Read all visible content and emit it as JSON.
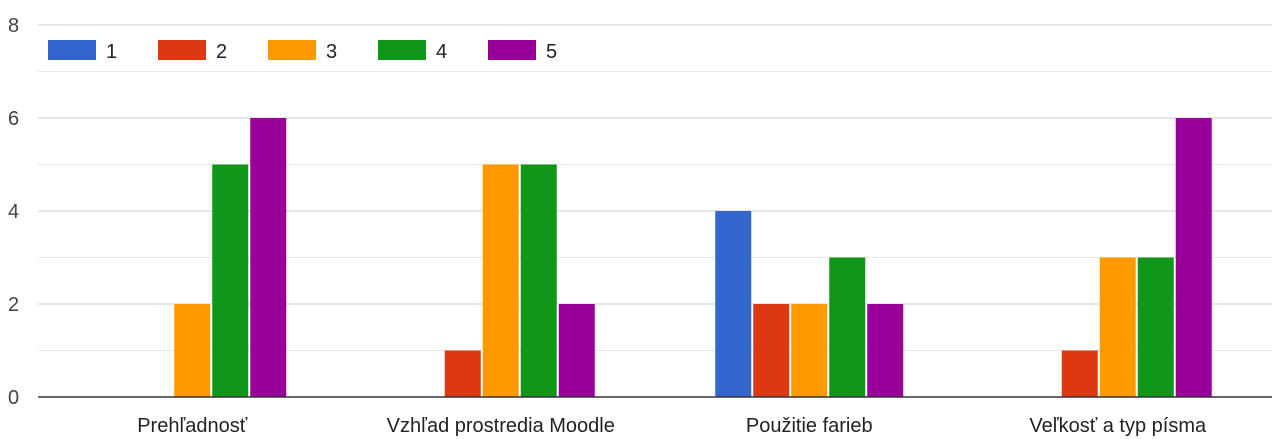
{
  "chart_data": {
    "type": "bar",
    "categories": [
      "Prehľadnosť",
      "Vzhľad prostredia Moodle",
      "Použitie farieb",
      "Veľkosť a typ písma"
    ],
    "series": [
      {
        "name": "1",
        "color": "#3366cc",
        "values": [
          0,
          0,
          4,
          0
        ]
      },
      {
        "name": "2",
        "color": "#dc3912",
        "values": [
          0,
          1,
          2,
          1
        ]
      },
      {
        "name": "3",
        "color": "#ff9900",
        "values": [
          2,
          5,
          2,
          3
        ]
      },
      {
        "name": "4",
        "color": "#109618",
        "values": [
          5,
          5,
          3,
          3
        ]
      },
      {
        "name": "5",
        "color": "#990099",
        "values": [
          6,
          2,
          2,
          6
        ]
      }
    ],
    "yticks": [
      "0",
      "2",
      "4",
      "6",
      "8"
    ],
    "ylim": [
      0,
      8
    ],
    "grid": true,
    "legend": "top-left"
  }
}
